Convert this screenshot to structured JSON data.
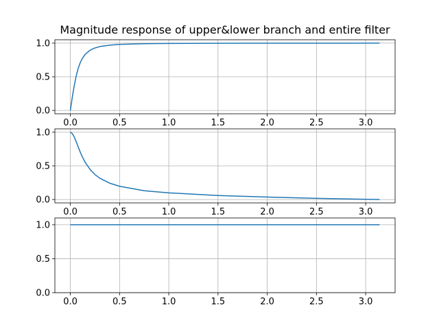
{
  "title": "Magnitude response of upper&lower branch and entire filter",
  "colors": {
    "line": "#1f77b4",
    "grid": "#b0b0b0",
    "axes": "#000000",
    "background": "#ffffff"
  },
  "chart_data": [
    {
      "type": "line",
      "title": "Magnitude response of upper&lower branch and entire filter",
      "xlabel": "",
      "ylabel": "",
      "xlim": [
        -0.157,
        3.299
      ],
      "ylim": [
        -0.05,
        1.05
      ],
      "grid": true,
      "xticks": [
        0.0,
        0.5,
        1.0,
        1.5,
        2.0,
        2.5,
        3.0
      ],
      "xtick_labels": [
        "0.0",
        "0.5",
        "1.0",
        "1.5",
        "2.0",
        "2.5",
        "3.0"
      ],
      "yticks": [
        0.0,
        0.5,
        1.0
      ],
      "ytick_labels": [
        "0.0",
        "0.5",
        "1.0"
      ],
      "series": [
        {
          "x": [
            0.0,
            0.02,
            0.04,
            0.06,
            0.08,
            0.1,
            0.12,
            0.15,
            0.2,
            0.25,
            0.3,
            0.4,
            0.5,
            0.75,
            1.0,
            1.5,
            2.0,
            2.5,
            3.1416
          ],
          "values": [
            0.0,
            0.196,
            0.371,
            0.514,
            0.625,
            0.707,
            0.768,
            0.832,
            0.894,
            0.928,
            0.949,
            0.97,
            0.981,
            0.992,
            0.995,
            0.998,
            0.9988,
            0.9993,
            1.0
          ]
        }
      ]
    },
    {
      "type": "line",
      "title": "",
      "xlabel": "",
      "ylabel": "",
      "xlim": [
        -0.157,
        3.299
      ],
      "ylim": [
        -0.05,
        1.05
      ],
      "grid": true,
      "xticks": [
        0.0,
        0.5,
        1.0,
        1.5,
        2.0,
        2.5,
        3.0
      ],
      "xtick_labels": [
        "0.0",
        "0.5",
        "1.0",
        "1.5",
        "2.0",
        "2.5",
        "3.0"
      ],
      "yticks": [
        0.0,
        0.5,
        1.0
      ],
      "ytick_labels": [
        "0.0",
        "0.5",
        "1.0"
      ],
      "series": [
        {
          "x": [
            0.0,
            0.02,
            0.04,
            0.06,
            0.08,
            0.1,
            0.12,
            0.15,
            0.2,
            0.25,
            0.3,
            0.4,
            0.5,
            0.75,
            1.0,
            1.5,
            2.0,
            2.5,
            3.1416
          ],
          "values": [
            1.0,
            0.98,
            0.929,
            0.858,
            0.781,
            0.707,
            0.641,
            0.555,
            0.447,
            0.371,
            0.316,
            0.243,
            0.197,
            0.131,
            0.099,
            0.06,
            0.036,
            0.018,
            0.0
          ]
        }
      ]
    },
    {
      "type": "line",
      "title": "",
      "xlabel": "",
      "ylabel": "",
      "xlim": [
        -0.157,
        3.299
      ],
      "ylim": [
        0.0,
        1.1
      ],
      "grid": true,
      "xticks": [
        0.0,
        0.5,
        1.0,
        1.5,
        2.0,
        2.5,
        3.0
      ],
      "xtick_labels": [
        "0.0",
        "0.5",
        "1.0",
        "1.5",
        "2.0",
        "2.5",
        "3.0"
      ],
      "yticks": [
        0.0,
        0.5,
        1.0
      ],
      "ytick_labels": [
        "0.0",
        "0.5",
        "1.0"
      ],
      "series": [
        {
          "x": [
            0.0,
            0.5,
            1.0,
            1.5,
            2.0,
            2.5,
            3.1416
          ],
          "values": [
            1.0,
            1.0,
            1.0,
            1.0,
            1.0,
            1.0,
            1.0
          ]
        }
      ]
    }
  ]
}
